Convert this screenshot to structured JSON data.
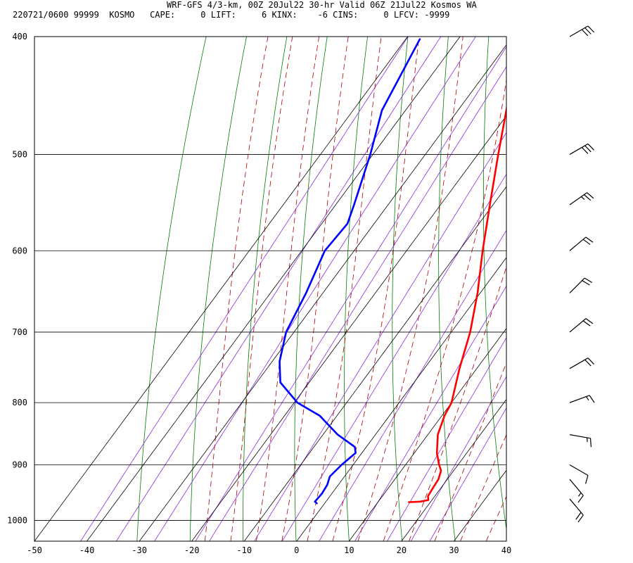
{
  "header": {
    "title": "WRF-GFS 4/3-km, 00Z 20Jul22 30-hr Valid 06Z 21Jul22 Kosmos WA",
    "stats": "220721/0600 99999  KOSMO   CAPE:     0 LIFT:     6 KINX:    -6 CINS:     0 LFCV: -9999"
  },
  "chart_data": {
    "type": "line",
    "chart_kind": "skew-T log-P sounding",
    "x_axis": {
      "label": "",
      "range": [
        -50,
        40
      ],
      "ticks": [
        -50,
        -40,
        -30,
        -20,
        -10,
        0,
        10,
        20,
        30,
        40
      ]
    },
    "y_axis": {
      "label": "",
      "scale": "log",
      "range": [
        1040,
        400
      ],
      "ticks": [
        400,
        500,
        600,
        700,
        800,
        900,
        1000
      ]
    },
    "grid": true,
    "series": [
      {
        "role": "temperature",
        "color": "#ff0000",
        "points": [
          [
            966,
            15.9
          ],
          [
            965,
            18
          ],
          [
            962,
            19.3
          ],
          [
            955,
            18.7
          ],
          [
            940,
            18.5
          ],
          [
            925,
            18.3
          ],
          [
            910,
            17.6
          ],
          [
            900,
            16.4
          ],
          [
            880,
            14.3
          ],
          [
            850,
            11.9
          ],
          [
            820,
            10.5
          ],
          [
            800,
            10.0
          ],
          [
            750,
            6.7
          ],
          [
            700,
            3.6
          ],
          [
            650,
            -0.5
          ],
          [
            600,
            -5.5
          ],
          [
            550,
            -10.6
          ],
          [
            500,
            -16.1
          ],
          [
            450,
            -22.0
          ],
          [
            402,
            -28.8
          ]
        ]
      },
      {
        "role": "dewpoint",
        "color": "#0000ff",
        "points": [
          [
            968,
            -1.5
          ],
          [
            965,
            -2.1
          ],
          [
            950,
            -1.9
          ],
          [
            935,
            -2.1
          ],
          [
            920,
            -2.8
          ],
          [
            900,
            -2.2
          ],
          [
            880,
            -1.2
          ],
          [
            870,
            -2.2
          ],
          [
            850,
            -7.2
          ],
          [
            820,
            -13.3
          ],
          [
            800,
            -19.4
          ],
          [
            770,
            -25.5
          ],
          [
            740,
            -28.6
          ],
          [
            700,
            -31.5
          ],
          [
            650,
            -33.2
          ],
          [
            600,
            -35.6
          ],
          [
            570,
            -35.1
          ],
          [
            550,
            -36.5
          ],
          [
            500,
            -40.5
          ],
          [
            460,
            -44.5
          ],
          [
            402,
            -47.3
          ]
        ]
      }
    ],
    "reference_lines": {
      "isotherms_c": [
        -50,
        -40,
        -30,
        -20,
        -10,
        0,
        10,
        20,
        30,
        40
      ],
      "dry_adiabats_k": [
        240,
        250,
        260,
        270,
        280,
        290,
        300,
        310,
        320,
        330,
        340,
        350,
        360,
        370,
        380,
        390,
        400,
        410,
        420
      ],
      "moist_adiabats_c": [
        -20,
        -15,
        -10,
        -5,
        0,
        5,
        10,
        15,
        20,
        25,
        30,
        35
      ],
      "mixing_ratios_gkg": [
        0.1,
        0.2,
        0.4,
        0.8,
        1,
        2,
        3,
        5,
        8,
        12,
        16,
        20
      ]
    },
    "wind_barbs": [
      {
        "p": 400,
        "dir": 240,
        "spd": 30
      },
      {
        "p": 500,
        "dir": 240,
        "spd": 30
      },
      {
        "p": 550,
        "dir": 235,
        "spd": 25
      },
      {
        "p": 600,
        "dir": 230,
        "spd": 20
      },
      {
        "p": 650,
        "dir": 225,
        "spd": 20
      },
      {
        "p": 700,
        "dir": 230,
        "spd": 20
      },
      {
        "p": 750,
        "dir": 240,
        "spd": 20
      },
      {
        "p": 800,
        "dir": 250,
        "spd": 15
      },
      {
        "p": 850,
        "dir": 280,
        "spd": 15
      },
      {
        "p": 900,
        "dir": 300,
        "spd": 10
      },
      {
        "p": 925,
        "dir": 320,
        "spd": 15
      },
      {
        "p": 960,
        "dir": 320,
        "spd": 20
      }
    ],
    "colors": {
      "isotherm": "#000000",
      "dry_adiabat": "#008000",
      "moist_adiabat": "#aa0000",
      "mixing_ratio": "#8a2be2"
    }
  }
}
